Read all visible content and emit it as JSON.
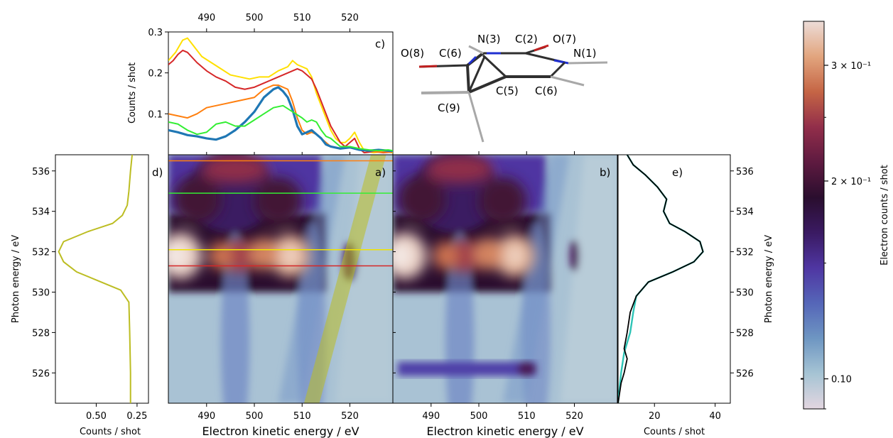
{
  "chart_data": [
    {
      "panel": "a)",
      "type": "heatmap",
      "xlabel": "Electron kinetic energy / eV",
      "ylabel": "",
      "xlim": [
        482,
        529
      ],
      "ylim": [
        524.5,
        536.8
      ],
      "x_ticks": [
        "490",
        "500",
        "510",
        "520"
      ],
      "hot_spots": [
        {
          "x": 482.5,
          "y": 531.8,
          "value": 0.34
        },
        {
          "x": 508,
          "y": 531.8,
          "value": 0.3
        },
        {
          "x": 486,
          "y": 534.5,
          "value": 0.2
        },
        {
          "x": 505,
          "y": 534.5,
          "value": 0.2
        }
      ],
      "horizontal_lines": [
        {
          "y": 536.5,
          "color": "#ff7f0e"
        },
        {
          "y": 534.9,
          "color": "#33ee33"
        },
        {
          "y": 532.1,
          "color": "#f0e400"
        },
        {
          "y": 531.3,
          "color": "#d62728"
        }
      ],
      "diagonal_band": {
        "color": "#bcbd22",
        "points": [
          [
            512,
            524.5
          ],
          [
            526,
            536.8
          ]
        ]
      }
    },
    {
      "panel": "b)",
      "type": "heatmap",
      "xlabel": "Electron kinetic energy / eV",
      "xlim": [
        482,
        529
      ],
      "ylim": [
        524.5,
        536.8
      ],
      "x_ticks": [
        "490",
        "500",
        "510",
        "520"
      ],
      "hot_spots": [
        {
          "x": 482.5,
          "y": 531.8,
          "value": 0.34
        },
        {
          "x": 508,
          "y": 531.8,
          "value": 0.3
        }
      ],
      "feature": {
        "y": 526.2,
        "x_range": [
          483,
          512
        ],
        "note": ""
      }
    },
    {
      "panel": "c)",
      "type": "line",
      "xlabel": "",
      "ylabel": "Counts / shot",
      "xlim": [
        482,
        529
      ],
      "ylim": [
        0,
        0.3
      ],
      "x_ticks": [
        "490",
        "500",
        "510",
        "520"
      ],
      "y_ticks": [
        "0.1",
        "0.2",
        "0.3"
      ],
      "series": [
        {
          "color": "#ffe000",
          "points": [
            [
              482,
              0.23
            ],
            [
              483.5,
              0.25
            ],
            [
              485,
              0.28
            ],
            [
              486,
              0.285
            ],
            [
              487,
              0.27
            ],
            [
              489,
              0.24
            ],
            [
              491,
              0.225
            ],
            [
              493,
              0.21
            ],
            [
              495,
              0.195
            ],
            [
              497,
              0.19
            ],
            [
              499,
              0.185
            ],
            [
              501,
              0.19
            ],
            [
              503,
              0.19
            ],
            [
              505,
              0.205
            ],
            [
              507,
              0.215
            ],
            [
              508,
              0.23
            ],
            [
              509,
              0.22
            ],
            [
              510,
              0.215
            ],
            [
              511,
              0.21
            ],
            [
              512,
              0.19
            ],
            [
              513,
              0.15
            ],
            [
              514,
              0.12
            ],
            [
              515,
              0.09
            ],
            [
              516,
              0.06
            ],
            [
              517,
              0.04
            ],
            [
              518,
              0.03
            ],
            [
              519,
              0.03
            ],
            [
              520,
              0.04
            ],
            [
              521,
              0.055
            ],
            [
              522,
              0.03
            ],
            [
              523,
              0.01
            ],
            [
              525,
              0.005
            ],
            [
              527,
              0.008
            ],
            [
              529,
              0.005
            ]
          ]
        },
        {
          "color": "#d62728",
          "points": [
            [
              482,
              0.22
            ],
            [
              483,
              0.23
            ],
            [
              484,
              0.245
            ],
            [
              485,
              0.255
            ],
            [
              486,
              0.25
            ],
            [
              488,
              0.225
            ],
            [
              490,
              0.205
            ],
            [
              492,
              0.19
            ],
            [
              494,
              0.18
            ],
            [
              496,
              0.165
            ],
            [
              498,
              0.16
            ],
            [
              500,
              0.165
            ],
            [
              502,
              0.175
            ],
            [
              504,
              0.185
            ],
            [
              505,
              0.19
            ],
            [
              507,
              0.2
            ],
            [
              509,
              0.21
            ],
            [
              510,
              0.205
            ],
            [
              511,
              0.195
            ],
            [
              512,
              0.185
            ],
            [
              513,
              0.16
            ],
            [
              514,
              0.13
            ],
            [
              515,
              0.1
            ],
            [
              516,
              0.07
            ],
            [
              517,
              0.05
            ],
            [
              518,
              0.03
            ],
            [
              519,
              0.02
            ],
            [
              520,
              0.03
            ],
            [
              521,
              0.04
            ],
            [
              522,
              0.015
            ],
            [
              523,
              0.005
            ],
            [
              525,
              0.008
            ],
            [
              527,
              0.005
            ],
            [
              529,
              0.007
            ]
          ]
        },
        {
          "color": "#ff7f0e",
          "points": [
            [
              482,
              0.1
            ],
            [
              484,
              0.095
            ],
            [
              486,
              0.09
            ],
            [
              488,
              0.1
            ],
            [
              490,
              0.115
            ],
            [
              492,
              0.12
            ],
            [
              494,
              0.125
            ],
            [
              496,
              0.13
            ],
            [
              498,
              0.135
            ],
            [
              500,
              0.14
            ],
            [
              502,
              0.16
            ],
            [
              504,
              0.17
            ],
            [
              505,
              0.17
            ],
            [
              507,
              0.16
            ],
            [
              508,
              0.13
            ],
            [
              509,
              0.09
            ],
            [
              510,
              0.06
            ],
            [
              511,
              0.05
            ],
            [
              512,
              0.055
            ],
            [
              513,
              0.05
            ],
            [
              514,
              0.04
            ],
            [
              515,
              0.03
            ],
            [
              516,
              0.02
            ],
            [
              518,
              0.015
            ],
            [
              520,
              0.02
            ],
            [
              521,
              0.015
            ],
            [
              523,
              0.01
            ],
            [
              525,
              0.008
            ],
            [
              527,
              0.006
            ],
            [
              529,
              0.007
            ]
          ]
        },
        {
          "color": "#1f77b4",
          "points": [
            [
              482,
              0.06
            ],
            [
              484,
              0.055
            ],
            [
              486,
              0.048
            ],
            [
              488,
              0.045
            ],
            [
              490,
              0.04
            ],
            [
              492,
              0.037
            ],
            [
              494,
              0.045
            ],
            [
              496,
              0.06
            ],
            [
              498,
              0.08
            ],
            [
              500,
              0.105
            ],
            [
              502,
              0.14
            ],
            [
              504,
              0.16
            ],
            [
              505,
              0.165
            ],
            [
              506,
              0.155
            ],
            [
              507,
              0.14
            ],
            [
              508,
              0.11
            ],
            [
              509,
              0.07
            ],
            [
              510,
              0.05
            ],
            [
              511,
              0.055
            ],
            [
              512,
              0.06
            ],
            [
              513,
              0.05
            ],
            [
              514,
              0.04
            ],
            [
              515,
              0.025
            ],
            [
              516,
              0.02
            ],
            [
              518,
              0.015
            ],
            [
              520,
              0.018
            ],
            [
              522,
              0.012
            ],
            [
              524,
              0.01
            ],
            [
              526,
              0.012
            ],
            [
              528,
              0.01
            ],
            [
              529,
              0.009
            ]
          ]
        },
        {
          "color": "#33ee33",
          "points": [
            [
              482,
              0.08
            ],
            [
              484,
              0.075
            ],
            [
              486,
              0.06
            ],
            [
              488,
              0.05
            ],
            [
              490,
              0.055
            ],
            [
              492,
              0.075
            ],
            [
              494,
              0.08
            ],
            [
              496,
              0.07
            ],
            [
              498,
              0.07
            ],
            [
              500,
              0.085
            ],
            [
              502,
              0.1
            ],
            [
              504,
              0.115
            ],
            [
              506,
              0.12
            ],
            [
              508,
              0.105
            ],
            [
              510,
              0.09
            ],
            [
              511,
              0.08
            ],
            [
              512,
              0.085
            ],
            [
              513,
              0.08
            ],
            [
              514,
              0.06
            ],
            [
              515,
              0.045
            ],
            [
              516,
              0.04
            ],
            [
              517,
              0.03
            ],
            [
              518,
              0.02
            ],
            [
              520,
              0.02
            ],
            [
              522,
              0.015
            ],
            [
              524,
              0.012
            ],
            [
              526,
              0.01
            ],
            [
              528,
              0.012
            ],
            [
              529,
              0.01
            ]
          ]
        }
      ]
    },
    {
      "panel": "d)",
      "type": "line",
      "xlabel": "Counts / shot",
      "ylabel": "Photon energy / eV",
      "xlim": [
        0.75,
        0.18
      ],
      "ylim": [
        524.5,
        536.8
      ],
      "x_ticks": [
        "0.50",
        "0.25"
      ],
      "y_ticks": [
        "526",
        "528",
        "530",
        "532",
        "534",
        "536"
      ],
      "series": [
        {
          "color": "#bcbd22",
          "points": [
            [
              0.29,
              524.5
            ],
            [
              0.29,
              526
            ],
            [
              0.295,
              528
            ],
            [
              0.3,
              529.5
            ],
            [
              0.35,
              530.1
            ],
            [
              0.5,
              530.6
            ],
            [
              0.62,
              531.0
            ],
            [
              0.7,
              531.5
            ],
            [
              0.73,
              532.0
            ],
            [
              0.7,
              532.5
            ],
            [
              0.55,
              533.0
            ],
            [
              0.4,
              533.4
            ],
            [
              0.34,
              533.8
            ],
            [
              0.31,
              534.3
            ],
            [
              0.3,
              535
            ],
            [
              0.29,
              536
            ],
            [
              0.28,
              536.8
            ]
          ]
        }
      ]
    },
    {
      "panel": "e)",
      "type": "line",
      "xlabel": "Counts / shot",
      "ylabel": "Photon energy / eV",
      "xlim": [
        8,
        45
      ],
      "ylim": [
        524.5,
        536.8
      ],
      "x_ticks": [
        "20",
        "40"
      ],
      "y_ticks": [
        "526",
        "528",
        "530",
        "532",
        "534",
        "536"
      ],
      "series": [
        {
          "color": "#2ec4b6",
          "points": [
            [
              8,
              524.5
            ],
            [
              9,
              526
            ],
            [
              10,
              527
            ],
            [
              12,
              528
            ],
            [
              13,
              529
            ],
            [
              14,
              529.8
            ],
            [
              18,
              530.5
            ],
            [
              26,
              531.0
            ],
            [
              33,
              531.5
            ],
            [
              36,
              532.0
            ],
            [
              35,
              532.5
            ],
            [
              30,
              533.0
            ],
            [
              25,
              533.4
            ],
            [
              23,
              534.0
            ],
            [
              24,
              534.6
            ],
            [
              21,
              535.2
            ],
            [
              17,
              535.8
            ],
            [
              13,
              536.3
            ],
            [
              11,
              536.8
            ]
          ]
        },
        {
          "color": "#000000",
          "points": [
            [
              8,
              524.5
            ],
            [
              9,
              525.5
            ],
            [
              10,
              526
            ],
            [
              11,
              526.7
            ],
            [
              10,
              527.2
            ],
            [
              11,
              528
            ],
            [
              12,
              529
            ],
            [
              14,
              529.8
            ],
            [
              18,
              530.5
            ],
            [
              26,
              531.0
            ],
            [
              33,
              531.5
            ],
            [
              36,
              532.0
            ],
            [
              35,
              532.5
            ],
            [
              30,
              533.0
            ],
            [
              25,
              533.4
            ],
            [
              23,
              534.0
            ],
            [
              24,
              534.6
            ],
            [
              21,
              535.2
            ],
            [
              17,
              535.8
            ],
            [
              13,
              536.3
            ],
            [
              11,
              536.8
            ]
          ]
        }
      ]
    },
    {
      "type": "colorbar",
      "ylabel": "Electron counts / shot",
      "scale": "log",
      "range": [
        0.09,
        0.35
      ],
      "ticks": [
        "0.10",
        "2 × 10⁻¹",
        "3 × 10⁻¹"
      ],
      "colormap": [
        "#e3d6e0",
        "#a6c4d4",
        "#6e96c2",
        "#5566b8",
        "#4f36a2",
        "#3a1a62",
        "#2a0e2e",
        "#5e1a40",
        "#922e4a",
        "#c56545",
        "#e2a57e",
        "#ecdcd8"
      ]
    }
  ],
  "texts": {
    "panel_a": "a)",
    "panel_b": "b)",
    "panel_c": "c)",
    "panel_d": "d)",
    "panel_e": "e)",
    "xlabel_a": "Electron kinetic energy / eV",
    "xlabel_b": "Electron kinetic energy / eV",
    "xlabel_d": "Counts / shot",
    "xlabel_e": "Counts / shot",
    "ylabel_c": "Counts / shot",
    "ylabel_d": "Photon energy / eV",
    "ylabel_e": "Photon energy / eV",
    "cbar_label": "Electron counts / shot"
  },
  "molecule_labels": [
    "O(8)",
    "C(6)",
    "N(3)",
    "C(2)",
    "O(7)",
    "N(1)",
    "C(5)",
    "C(6)",
    "C(9)"
  ],
  "colors": {
    "bond_dark": "#2f2f2f",
    "bond_light": "#a8a8a8",
    "nitrogen": "#1f2fd0",
    "oxygen": "#c02020"
  }
}
